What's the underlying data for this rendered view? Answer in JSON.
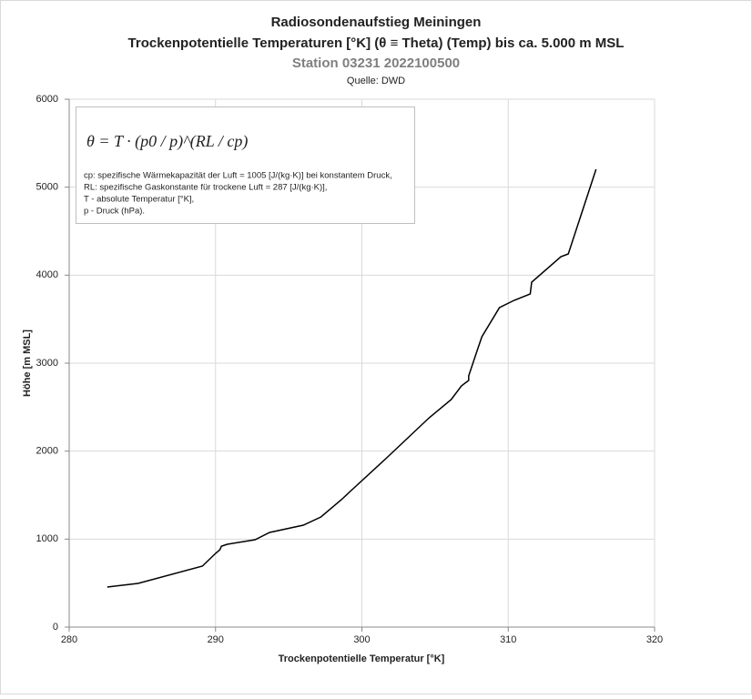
{
  "chart_data": {
    "type": "line",
    "title": "Radiosondenaufstieg Meiningen",
    "subtitle": "Trockenpotentielle Temperaturen [°K] (θ ≡ Theta) (Temp) bis ca. 5.000 m MSL",
    "station": "Station 03231 2022100500",
    "source": "Quelle: DWD",
    "x_label": "Trockenpotentielle Temperatur [°K]",
    "y_label": "Höhe [m MSL]",
    "formula": "θ = T · (p0 / p)^(RL / cp)",
    "notes": [
      "cp: spezifische Wärmekapazität der Luft = 1005 [J/(kg·K)] bei konstantem Druck,",
      "RL: spezifische Gaskonstante für trockene Luft = 287 [J/(kg·K)],",
      "T - absolute Temperatur [°K],",
      "p - Druck (hPa)."
    ],
    "x": [
      282.6,
      284.7,
      289.1,
      290.0,
      290.3,
      290.4,
      290.8,
      292.7,
      293.7,
      296.0,
      297.2,
      298.6,
      299.2,
      301.7,
      304.6,
      306.1,
      306.8,
      307.3,
      307.3,
      307.9,
      308.2,
      309.4,
      310.4,
      311.5,
      311.6,
      313.6,
      314.1,
      316.0
    ],
    "series": [
      {
        "color": "#000000",
        "values": [
          455,
          497,
          693,
          838,
          880,
          920,
          941,
          993,
          1076,
          1159,
          1252,
          1448,
          1541,
          1924,
          2379,
          2586,
          2741,
          2803,
          2855,
          3155,
          3300,
          3631,
          3714,
          3786,
          3921,
          4210,
          4241,
          5203
        ]
      }
    ],
    "xlim": [
      280,
      320
    ],
    "ylim": [
      0,
      6000
    ],
    "xticks": [
      280,
      290,
      300,
      310,
      320
    ],
    "yticks": [
      0,
      1000,
      2000,
      3000,
      4000,
      5000,
      6000
    ],
    "grid": true
  }
}
